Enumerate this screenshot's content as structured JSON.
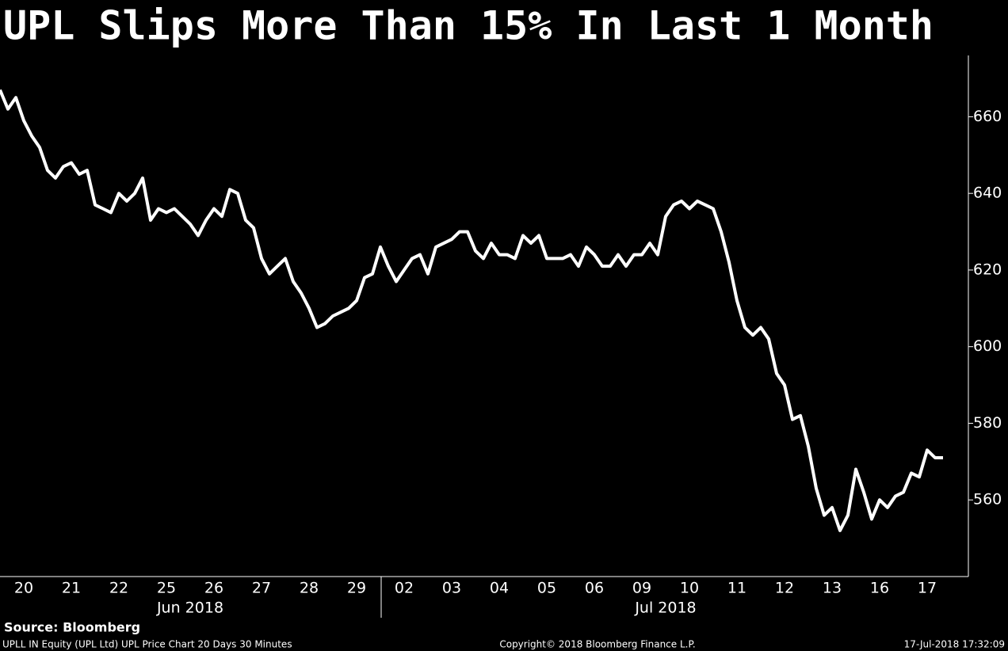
{
  "chart_data": {
    "type": "line",
    "title": "UPL Slips More Than 15% In Last 1 Month",
    "color": "#ffffff",
    "ylim": [
      540,
      676
    ],
    "yticks": [
      560,
      580,
      600,
      620,
      640,
      660
    ],
    "months": [
      {
        "name": "Jun 2018",
        "days": [
          {
            "label": "20",
            "values": [
              667,
              662,
              665,
              659,
              655,
              652
            ]
          },
          {
            "label": "21",
            "values": [
              646,
              644,
              647,
              648,
              645,
              646
            ]
          },
          {
            "label": "22",
            "values": [
              637,
              636,
              635,
              640,
              638,
              640
            ]
          },
          {
            "label": "25",
            "values": [
              644,
              633,
              636,
              635,
              636,
              634
            ]
          },
          {
            "label": "26",
            "values": [
              632,
              629,
              633,
              636,
              634,
              641
            ]
          },
          {
            "label": "27",
            "values": [
              640,
              633,
              631,
              623,
              619,
              621
            ]
          },
          {
            "label": "28",
            "values": [
              623,
              617,
              614,
              610,
              605,
              606
            ]
          },
          {
            "label": "29",
            "values": [
              608,
              609,
              610,
              612,
              618,
              619
            ]
          }
        ]
      },
      {
        "name": "Jul 2018",
        "days": [
          {
            "label": "02",
            "values": [
              626,
              621,
              617,
              620,
              623,
              624
            ]
          },
          {
            "label": "03",
            "values": [
              619,
              626,
              627,
              628,
              630,
              630
            ]
          },
          {
            "label": "04",
            "values": [
              625,
              623,
              627,
              624,
              624,
              623
            ]
          },
          {
            "label": "05",
            "values": [
              629,
              627,
              629,
              623,
              623,
              623
            ]
          },
          {
            "label": "06",
            "values": [
              624,
              621,
              626,
              624,
              621,
              621
            ]
          },
          {
            "label": "09",
            "values": [
              624,
              621,
              624,
              624,
              627,
              624
            ]
          },
          {
            "label": "10",
            "values": [
              634,
              637,
              638,
              636,
              638,
              637
            ]
          },
          {
            "label": "11",
            "values": [
              636,
              630,
              622,
              612,
              605,
              603
            ]
          },
          {
            "label": "12",
            "values": [
              605,
              602,
              593,
              590,
              581,
              582
            ]
          },
          {
            "label": "13",
            "values": [
              574,
              563,
              556,
              558,
              552,
              556
            ]
          },
          {
            "label": "16",
            "values": [
              568,
              562,
              555,
              560,
              558,
              561
            ]
          },
          {
            "label": "17",
            "values": [
              562,
              567,
              566,
              573,
              571,
              571
            ]
          }
        ]
      }
    ],
    "source": "Source: Bloomberg",
    "footer_left": "UPLL IN Equity (UPL Ltd) UPL Price Chart 20 Days 30 Minutes",
    "footer_center": "Copyright© 2018 Bloomberg Finance L.P.",
    "footer_right": "17-Jul-2018 17:32:09"
  }
}
